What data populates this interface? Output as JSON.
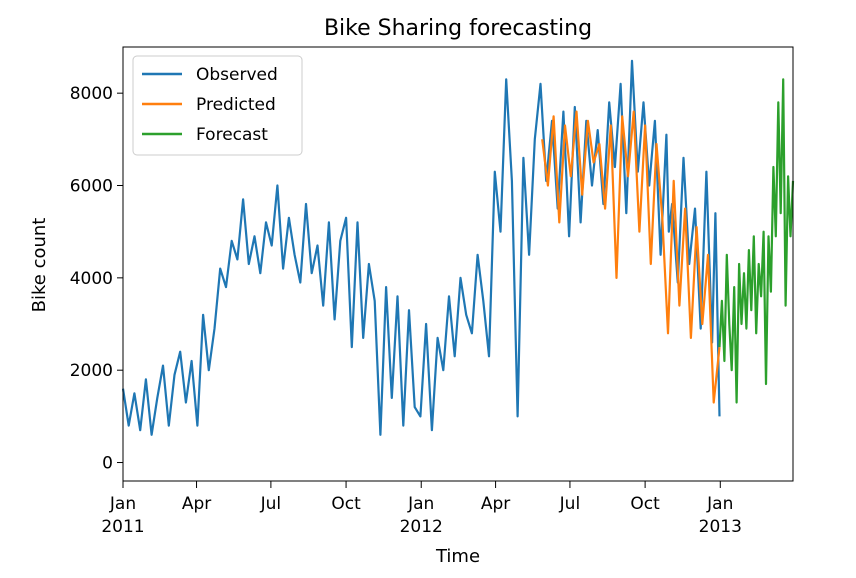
{
  "chart_data": {
    "type": "line",
    "title": "Bike Sharing forecasting",
    "xlabel": "Time",
    "ylabel": "Bike count",
    "xlim": [
      "2011-01-01",
      "2013-03-31"
    ],
    "ylim": [
      -400,
      9000
    ],
    "y_ticks": [
      0,
      2000,
      4000,
      6000,
      8000
    ],
    "x_ticks": [
      {
        "date": "2011-01-01",
        "label": "Jan",
        "sublabel": "2011"
      },
      {
        "date": "2011-04-01",
        "label": "Apr",
        "sublabel": ""
      },
      {
        "date": "2011-07-01",
        "label": "Jul",
        "sublabel": ""
      },
      {
        "date": "2011-10-01",
        "label": "Oct",
        "sublabel": ""
      },
      {
        "date": "2012-01-01",
        "label": "Jan",
        "sublabel": "2012"
      },
      {
        "date": "2012-04-01",
        "label": "Apr",
        "sublabel": ""
      },
      {
        "date": "2012-07-01",
        "label": "Jul",
        "sublabel": ""
      },
      {
        "date": "2012-10-01",
        "label": "Oct",
        "sublabel": ""
      },
      {
        "date": "2013-01-01",
        "label": "Jan",
        "sublabel": "2013"
      }
    ],
    "grid": false,
    "legend_position": "top-left",
    "series": [
      {
        "name": "Observed",
        "color": "#1f77b4",
        "x": [
          "2011-01-01",
          "2011-01-08",
          "2011-01-15",
          "2011-01-22",
          "2011-01-29",
          "2011-02-05",
          "2011-02-12",
          "2011-02-19",
          "2011-02-26",
          "2011-03-05",
          "2011-03-12",
          "2011-03-19",
          "2011-03-26",
          "2011-04-02",
          "2011-04-09",
          "2011-04-16",
          "2011-04-23",
          "2011-04-30",
          "2011-05-07",
          "2011-05-14",
          "2011-05-21",
          "2011-05-28",
          "2011-06-04",
          "2011-06-11",
          "2011-06-18",
          "2011-06-25",
          "2011-07-02",
          "2011-07-09",
          "2011-07-16",
          "2011-07-23",
          "2011-07-30",
          "2011-08-06",
          "2011-08-13",
          "2011-08-20",
          "2011-08-27",
          "2011-09-03",
          "2011-09-10",
          "2011-09-17",
          "2011-09-24",
          "2011-10-01",
          "2011-10-08",
          "2011-10-15",
          "2011-10-22",
          "2011-10-29",
          "2011-11-05",
          "2011-11-12",
          "2011-11-19",
          "2011-11-26",
          "2011-12-03",
          "2011-12-10",
          "2011-12-17",
          "2011-12-24",
          "2011-12-31",
          "2012-01-07",
          "2012-01-14",
          "2012-01-21",
          "2012-01-28",
          "2012-02-04",
          "2012-02-11",
          "2012-02-18",
          "2012-02-25",
          "2012-03-03",
          "2012-03-10",
          "2012-03-17",
          "2012-03-24",
          "2012-03-31",
          "2012-04-07",
          "2012-04-14",
          "2012-04-21",
          "2012-04-28",
          "2012-05-05",
          "2012-05-12",
          "2012-05-19",
          "2012-05-26",
          "2012-06-02",
          "2012-06-09",
          "2012-06-16",
          "2012-06-23",
          "2012-06-30",
          "2012-07-07",
          "2012-07-14",
          "2012-07-21",
          "2012-07-28",
          "2012-08-04",
          "2012-08-11",
          "2012-08-18",
          "2012-08-25",
          "2012-09-01",
          "2012-09-08",
          "2012-09-15",
          "2012-09-22",
          "2012-09-29",
          "2012-10-06",
          "2012-10-13",
          "2012-10-20",
          "2012-10-27",
          "2012-10-30",
          "2012-11-03",
          "2012-11-10",
          "2012-11-17",
          "2012-11-24",
          "2012-12-01",
          "2012-12-08",
          "2012-12-15",
          "2012-12-22",
          "2012-12-26",
          "2012-12-31"
        ],
        "y": [
          1600,
          800,
          1500,
          700,
          1800,
          600,
          1400,
          2100,
          800,
          1900,
          2400,
          1300,
          2200,
          800,
          3200,
          2000,
          2900,
          4200,
          3800,
          4800,
          4400,
          5700,
          4300,
          4900,
          4100,
          5200,
          4700,
          6000,
          4200,
          5300,
          4500,
          3900,
          5600,
          4100,
          4700,
          3400,
          5200,
          3100,
          4800,
          5300,
          2500,
          5200,
          2700,
          4300,
          3500,
          600,
          3800,
          1400,
          3600,
          800,
          3300,
          1200,
          1000,
          3000,
          700,
          2700,
          2000,
          3600,
          2300,
          4000,
          3200,
          2800,
          4500,
          3500,
          2300,
          6300,
          5000,
          8300,
          6100,
          1000,
          6600,
          4500,
          7000,
          8200,
          6100,
          7400,
          5500,
          7600,
          4900,
          7700,
          5200,
          7400,
          6000,
          7200,
          5600,
          7800,
          6400,
          8200,
          5400,
          8700,
          6300,
          7800,
          6000,
          7400,
          4500,
          7100,
          5000,
          5600,
          3900,
          6600,
          4300,
          5500,
          2900,
          6300,
          2600,
          5400,
          1000
        ]
      },
      {
        "name": "Predicted",
        "color": "#ff7f0e",
        "x": [
          "2012-05-28",
          "2012-06-04",
          "2012-06-11",
          "2012-06-18",
          "2012-06-25",
          "2012-07-02",
          "2012-07-09",
          "2012-07-16",
          "2012-07-23",
          "2012-07-30",
          "2012-08-06",
          "2012-08-13",
          "2012-08-20",
          "2012-08-27",
          "2012-09-03",
          "2012-09-10",
          "2012-09-17",
          "2012-09-24",
          "2012-10-01",
          "2012-10-08",
          "2012-10-15",
          "2012-10-22",
          "2012-10-29",
          "2012-11-05",
          "2012-11-12",
          "2012-11-19",
          "2012-11-26",
          "2012-12-03",
          "2012-12-10",
          "2012-12-17",
          "2012-12-24",
          "2012-12-31"
        ],
        "y": [
          7000,
          6000,
          7500,
          5200,
          7300,
          6200,
          7600,
          5800,
          7400,
          6500,
          6900,
          5500,
          7300,
          4000,
          7500,
          6200,
          7600,
          5000,
          7300,
          4300,
          6900,
          5300,
          2800,
          6100,
          3400,
          5500,
          2700,
          5100,
          3000,
          4500,
          1300,
          2500
        ]
      },
      {
        "name": "Forecast",
        "color": "#2ca02c",
        "x": [
          "2012-12-31",
          "2013-01-03",
          "2013-01-06",
          "2013-01-09",
          "2013-01-12",
          "2013-01-15",
          "2013-01-18",
          "2013-01-21",
          "2013-01-24",
          "2013-01-27",
          "2013-01-30",
          "2013-02-02",
          "2013-02-05",
          "2013-02-08",
          "2013-02-11",
          "2013-02-14",
          "2013-02-17",
          "2013-02-20",
          "2013-02-23",
          "2013-02-26",
          "2013-03-01",
          "2013-03-04",
          "2013-03-07",
          "2013-03-10",
          "2013-03-13",
          "2013-03-16",
          "2013-03-19",
          "2013-03-22",
          "2013-03-25",
          "2013-03-28",
          "2013-03-31"
        ],
        "y": [
          2500,
          3500,
          2200,
          4500,
          3000,
          2000,
          3800,
          1300,
          4300,
          3000,
          4100,
          2900,
          4600,
          3300,
          4900,
          2800,
          4300,
          3600,
          5000,
          1700,
          4900,
          3700,
          6400,
          4900,
          7800,
          5400,
          8300,
          3400,
          6200,
          4900,
          6100
        ]
      }
    ]
  }
}
